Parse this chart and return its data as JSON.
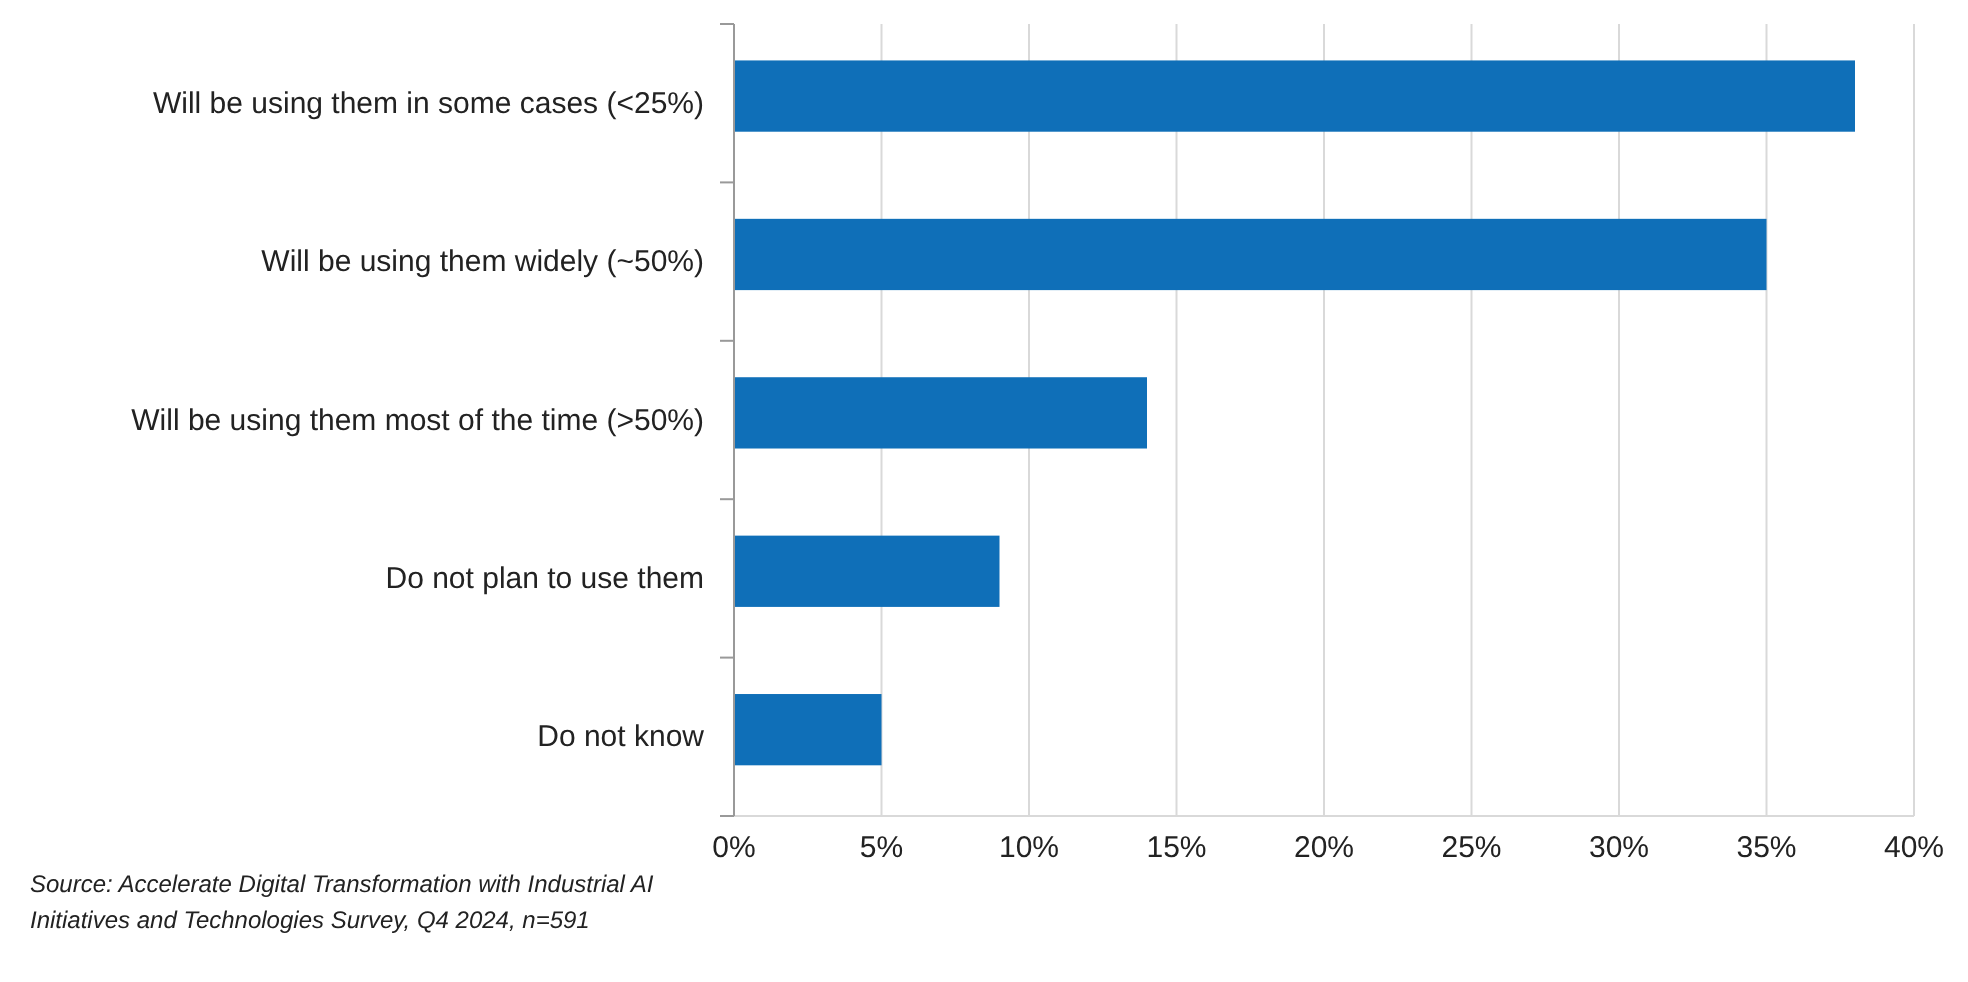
{
  "chart_data": {
    "type": "bar",
    "orientation": "horizontal",
    "categories": [
      "Will be using them in some cases (<25%)",
      "Will be using them widely (~50%)",
      "Will be using them most of the time (>50%)",
      "Do not plan to use them",
      "Do not know"
    ],
    "values": [
      0.38,
      0.35,
      0.14,
      0.09,
      0.05
    ],
    "color": "#0f6fb8",
    "xlim": [
      0,
      0.4
    ],
    "xticks": [
      {
        "value": 0,
        "label": "0%"
      },
      {
        "value": 0.05,
        "label": "5%"
      },
      {
        "value": 0.1,
        "label": "10%"
      },
      {
        "value": 0.15,
        "label": "15%"
      },
      {
        "value": 0.2,
        "label": "20%"
      },
      {
        "value": 0.25,
        "label": "25%"
      },
      {
        "value": 0.3,
        "label": "30%"
      },
      {
        "value": 0.35,
        "label": "35%"
      },
      {
        "value": 0.4,
        "label": "40%"
      }
    ],
    "grid": "x",
    "annotations": [
      "Source:  Accelerate Digital Transformation with Industrial AI Initiatives and Technologies Survey, Q4 2024, n=591"
    ]
  }
}
